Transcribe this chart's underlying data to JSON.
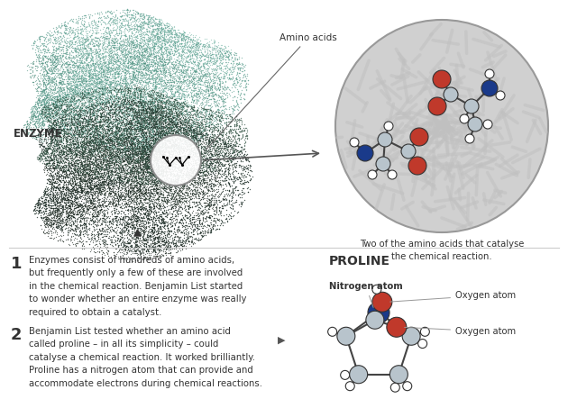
{
  "bg_color": "#ffffff",
  "text1_number": "1",
  "text1_body": "Enzymes consist of hundreds of amino acids,\nbut frequently only a few of these are involved\nin the chemical reaction. Benjamin List started\nto wonder whether an entire enzyme was really\nrequired to obtain a catalyst.",
  "text2_number": "2",
  "text2_body": "Benjamin List tested whether an amino acid\ncalled proline – in all its simplicity – could\ncatalyse a chemical reaction. It worked brilliantly.\nProline has a nitrogen atom that can provide and\naccommodate electrons during chemical reactions.",
  "enzyme_label": "ENZYME",
  "amino_acids_label": "Amino acids",
  "caption": "Two of the amino acids that catalyse\nthe chemical reaction.",
  "proline_title": "PROLINE",
  "nitrogen_label": "Nitrogen atom",
  "oxygen1_label": "Oxygen atom",
  "oxygen2_label": "Oxygen atom",
  "enzyme_teal": "#5a9e8e",
  "enzyme_dark": "#1e2e28",
  "enzyme_mid": "#2e5040",
  "nitrogen_color": "#1a3a8a",
  "oxygen_color": "#c0392b",
  "carbon_color": "#b8c4cc",
  "hydrogen_color": "#ffffff",
  "bond_color": "#444444",
  "arrow_color": "#555555",
  "font_color": "#333333",
  "number_color": "#333333",
  "separator_color": "#cccccc"
}
